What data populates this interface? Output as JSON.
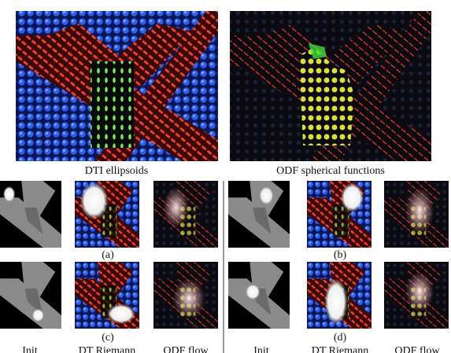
{
  "figure": {
    "captions": [
      "DTI ellipsoids",
      "ODF spherical functions"
    ],
    "panels": [
      "(a)",
      "(b)",
      "(c)",
      "(d)"
    ],
    "columns": [
      "Init",
      "DT Riemann",
      "ODF flow",
      "Init",
      "DT Riemann",
      "ODF flow"
    ]
  }
}
